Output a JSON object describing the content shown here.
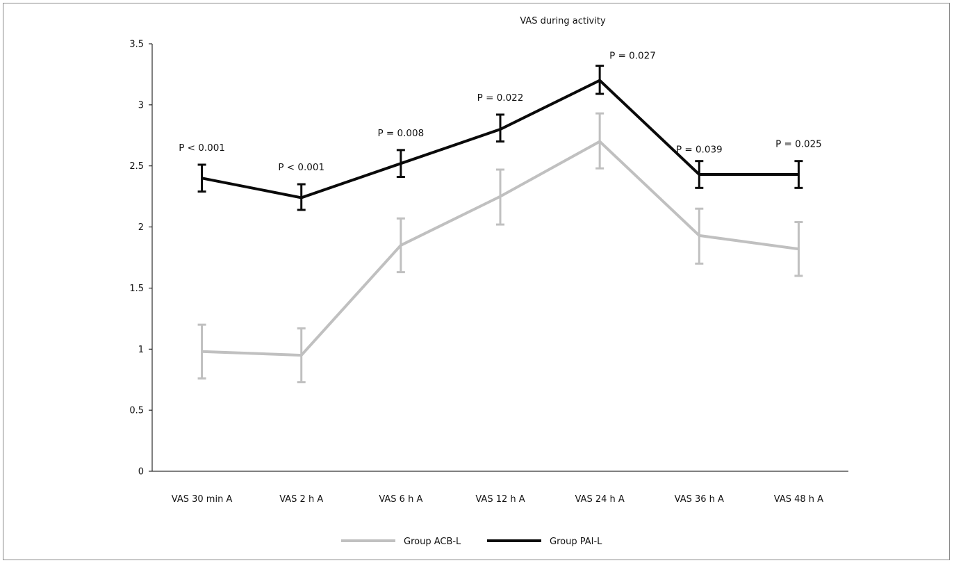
{
  "chart_data": {
    "type": "line",
    "title": "VAS during activity",
    "xlabel": "",
    "ylabel": "",
    "ylim": [
      0,
      3.5
    ],
    "yticks": [
      "0",
      "0.5",
      "1",
      "1.5",
      "2",
      "2.5",
      "3",
      "3.5"
    ],
    "categories": [
      "VAS 30 min A",
      "VAS 2 h A",
      "VAS 6 h A",
      "VAS 12 h A",
      "VAS 24 h A",
      "VAS 36 h A",
      "VAS 48 h A"
    ],
    "series": [
      {
        "name": "Group ACB-L",
        "color": "#c0c0c0",
        "values": [
          0.98,
          0.95,
          1.85,
          2.25,
          2.7,
          1.93,
          1.82
        ],
        "err_low": [
          0.76,
          0.73,
          1.63,
          2.02,
          2.48,
          1.7,
          1.6
        ],
        "err_high": [
          1.2,
          1.17,
          2.07,
          2.47,
          2.93,
          2.15,
          2.04
        ]
      },
      {
        "name": "Group PAI-L",
        "color": "#0a0a0a",
        "values": [
          2.4,
          2.24,
          2.52,
          2.8,
          3.2,
          2.43,
          2.43
        ],
        "err_low": [
          2.29,
          2.14,
          2.41,
          2.7,
          3.09,
          2.32,
          2.32
        ],
        "err_high": [
          2.51,
          2.35,
          2.63,
          2.92,
          3.32,
          2.54,
          2.54
        ]
      }
    ],
    "annotations": [
      "P < 0.001",
      "P < 0.001",
      "P = 0.008",
      "P = 0.022",
      "P = 0.027",
      "P = 0.039",
      "P = 0.025"
    ],
    "grid": false,
    "legend_position": "bottom"
  }
}
